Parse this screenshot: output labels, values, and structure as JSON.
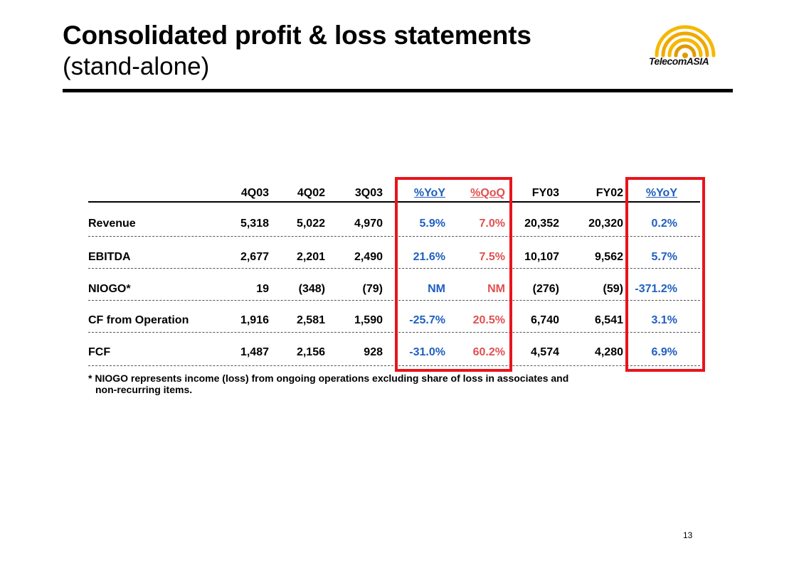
{
  "slide": {
    "title": "Consolidated profit & loss statements",
    "subtitle": "(stand-alone)",
    "page_number": "13"
  },
  "logo": {
    "text_left": "Telecom",
    "text_right": "ASIA",
    "colors": [
      "#f5b800",
      "#e09a00"
    ]
  },
  "table": {
    "headers": [
      "4Q03",
      "4Q02",
      "3Q03",
      "%YoY",
      "%QoQ",
      "FY03",
      "FY02",
      "%YoY"
    ],
    "rows": [
      {
        "label": "Revenue",
        "values": [
          "5,318",
          "5,022",
          "4,970",
          "5.9%",
          "7.0%",
          "20,352",
          "20,320",
          "0.2%"
        ]
      },
      {
        "label": "EBITDA",
        "values": [
          "2,677",
          "2,201",
          "2,490",
          "21.6%",
          "7.5%",
          "10,107",
          "9,562",
          "5.7%"
        ]
      },
      {
        "label": "NIOGO*",
        "values": [
          "19",
          "(348)",
          "(79)",
          "NM",
          "NM",
          "(276)",
          "(59)",
          "-371.2%"
        ]
      },
      {
        "label": "CF from Operation",
        "values": [
          "1,916",
          "2,581",
          "1,590",
          "-25.7%",
          "20.5%",
          "6,740",
          "6,541",
          "3.1%"
        ]
      },
      {
        "label": "FCF",
        "values": [
          "1,487",
          "2,156",
          "928",
          "-31.0%",
          "60.2%",
          "4,574",
          "4,280",
          "6.9%"
        ]
      }
    ],
    "colors": {
      "yoy": "#1f5fbf",
      "qoq": "#e05050",
      "highlight_box": "#e8141c"
    }
  },
  "footnote": {
    "line1": "* NIOGO represents income (loss) from ongoing operations excluding share of loss in associates and",
    "line2": "non-recurring items."
  }
}
